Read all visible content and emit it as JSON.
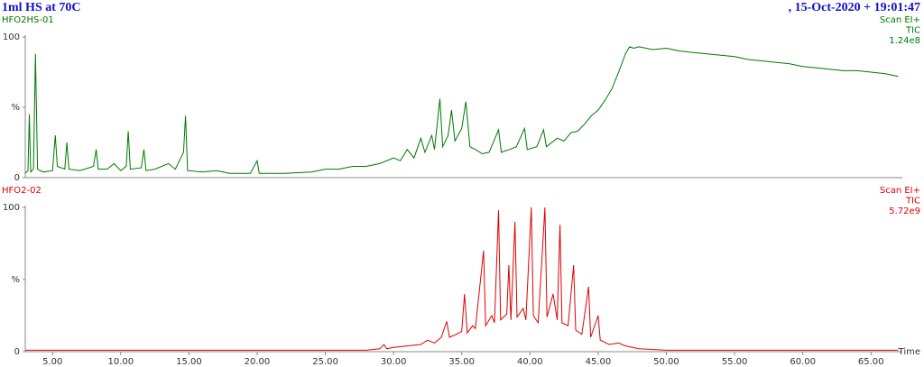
{
  "header": {
    "title": "1ml HS at 70C",
    "timestamp": ",  15-Oct-2020 + 19:01:47"
  },
  "chart_data": [
    {
      "type": "line",
      "title": "HFO2HS-01",
      "annotations": [
        "Scan EI+",
        "TIC",
        "1.24e8"
      ],
      "color": "#007800",
      "xlim": [
        3.0,
        67.3
      ],
      "ylim": [
        0,
        100
      ],
      "yticks": [
        0,
        {
          "value": 50,
          "label": "%"
        },
        100
      ],
      "x": [
        3.0,
        3.2,
        3.3,
        3.4,
        3.6,
        3.75,
        3.9,
        4.3,
        5.0,
        5.2,
        5.35,
        5.9,
        6.05,
        6.2,
        7.0,
        8.0,
        8.2,
        8.35,
        9.0,
        9.5,
        10.0,
        10.4,
        10.55,
        10.7,
        11.5,
        11.7,
        11.85,
        12.5,
        13.5,
        14.0,
        14.6,
        14.75,
        14.9,
        16.0,
        17.0,
        18.0,
        19.5,
        20.0,
        20.15,
        22.0,
        24.0,
        25.0,
        26.0,
        27.0,
        28.0,
        29.0,
        30.0,
        30.5,
        31.0,
        31.5,
        32.0,
        32.3,
        32.8,
        33.0,
        33.4,
        33.6,
        34.0,
        34.25,
        34.5,
        35.0,
        35.3,
        35.6,
        36.0,
        36.5,
        37.0,
        37.7,
        37.9,
        38.5,
        39.0,
        39.6,
        39.8,
        40.5,
        41.0,
        41.2,
        42.0,
        42.5,
        43.0,
        43.5,
        44.0,
        44.5,
        45.0,
        45.5,
        46.0,
        46.5,
        47.0,
        47.3,
        47.6,
        48.0,
        49.0,
        50.0,
        51.0,
        52.0,
        53.0,
        54.0,
        55.0,
        56.0,
        57.0,
        58.0,
        59.0,
        60.0,
        61.0,
        62.0,
        63.0,
        64.0,
        65.0,
        66.0,
        67.0
      ],
      "series": [
        {
          "values": [
            3,
            5,
            45,
            4,
            6,
            88,
            6,
            4,
            5,
            30,
            8,
            6,
            25,
            6,
            5,
            8,
            20,
            6,
            6,
            10,
            5,
            8,
            33,
            6,
            7,
            20,
            5,
            6,
            10,
            6,
            18,
            44,
            5,
            4,
            5,
            3,
            3,
            12,
            3,
            3,
            4,
            6,
            6,
            8,
            8,
            10,
            14,
            12,
            20,
            14,
            28,
            18,
            30,
            20,
            56,
            22,
            30,
            48,
            26,
            35,
            54,
            22,
            20,
            17,
            18,
            34,
            18,
            20,
            22,
            35,
            20,
            22,
            34,
            22,
            28,
            26,
            32,
            33,
            38,
            44,
            48,
            55,
            63,
            75,
            88,
            93,
            92,
            93,
            91,
            92,
            90,
            89,
            88,
            87,
            86,
            84,
            83,
            82,
            81,
            79,
            78,
            77,
            76,
            76,
            75,
            74,
            72
          ]
        }
      ]
    },
    {
      "type": "line",
      "title": "HFO2-02",
      "annotations": [
        "Scan EI+",
        "TIC",
        "5.72e9"
      ],
      "color": "#e00000",
      "xlim": [
        3.0,
        67.3
      ],
      "ylim": [
        0,
        100
      ],
      "xlabel": "Time",
      "yticks": [
        0,
        {
          "value": 50,
          "label": "%"
        },
        100
      ],
      "xticks": [
        {
          "value": 5,
          "label": "5.00"
        },
        {
          "value": 10,
          "label": "10.00"
        },
        {
          "value": 15,
          "label": "15.00"
        },
        {
          "value": 20,
          "label": "20.00"
        },
        {
          "value": 25,
          "label": "25.00"
        },
        {
          "value": 30,
          "label": "30.00"
        },
        {
          "value": 35,
          "label": "35.00"
        },
        {
          "value": 40,
          "label": "40.00"
        },
        {
          "value": 45,
          "label": "45.00"
        },
        {
          "value": 50,
          "label": "50.00"
        },
        {
          "value": 55,
          "label": "55.00"
        },
        {
          "value": 60,
          "label": "60.00"
        },
        {
          "value": 65,
          "label": "65.00"
        }
      ],
      "x": [
        3.0,
        5.0,
        10.0,
        15.0,
        20.0,
        25.0,
        28.0,
        29.0,
        29.3,
        29.5,
        30.0,
        31.0,
        32.0,
        32.5,
        33.0,
        33.5,
        33.9,
        34.1,
        34.6,
        35.0,
        35.2,
        35.4,
        35.8,
        36.0,
        36.6,
        36.75,
        37.2,
        37.4,
        37.7,
        37.85,
        38.3,
        38.45,
        38.6,
        38.9,
        39.05,
        39.5,
        39.7,
        40.1,
        40.25,
        40.6,
        41.1,
        41.25,
        41.7,
        42.0,
        42.2,
        42.35,
        42.8,
        43.2,
        43.35,
        43.8,
        44.3,
        44.45,
        45.0,
        45.15,
        45.8,
        46.5,
        47.0,
        48.0,
        50.0,
        55.0,
        60.0,
        65.0,
        67.0
      ],
      "series": [
        {
          "values": [
            1,
            1,
            1,
            1,
            1,
            1,
            1,
            2,
            5,
            2,
            3,
            4,
            5,
            8,
            6,
            10,
            21,
            10,
            12,
            14,
            40,
            13,
            18,
            16,
            70,
            18,
            25,
            20,
            98,
            22,
            26,
            60,
            22,
            90,
            24,
            30,
            22,
            100,
            25,
            20,
            100,
            24,
            40,
            22,
            88,
            20,
            18,
            60,
            15,
            12,
            45,
            10,
            25,
            8,
            5,
            6,
            4,
            2,
            1,
            1,
            1,
            1,
            1
          ]
        }
      ]
    }
  ]
}
